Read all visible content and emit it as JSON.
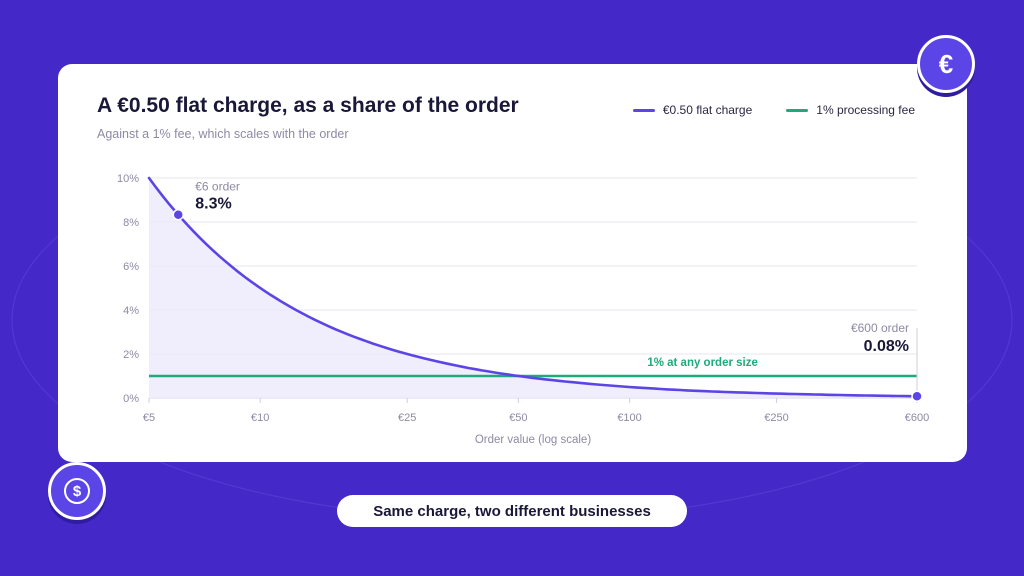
{
  "chart_data": {
    "type": "line",
    "title": "A €0.50 flat charge, as a share of the order",
    "subtitle": "Against a 1% fee, which scales with the order",
    "xlabel": "Order value (log scale)",
    "ylabel": "",
    "x_scale": "log",
    "xlim": [
      5,
      600
    ],
    "ylim": [
      0,
      10
    ],
    "x_ticks": [
      5,
      10,
      25,
      50,
      100,
      250,
      600
    ],
    "x_tick_labels": [
      "€5",
      "€10",
      "€25",
      "€50",
      "€100",
      "€250",
      "€600"
    ],
    "y_ticks": [
      0,
      2,
      4,
      6,
      8,
      10
    ],
    "y_tick_labels": [
      "0%",
      "2%",
      "4%",
      "6%",
      "8%",
      "10%"
    ],
    "grid": true,
    "legend_position": "top-right",
    "series": [
      {
        "name": "€0.50 flat charge",
        "color": "#5b45e6",
        "area_fill": "#ece9fb",
        "x": [
          5,
          6,
          7,
          8,
          10,
          12,
          15,
          20,
          25,
          30,
          40,
          50,
          75,
          100,
          150,
          200,
          250,
          300,
          400,
          500,
          600
        ],
        "values": [
          10,
          8.33,
          7.14,
          6.25,
          5,
          4.17,
          3.33,
          2.5,
          2,
          1.67,
          1.25,
          1,
          0.67,
          0.5,
          0.33,
          0.25,
          0.2,
          0.17,
          0.125,
          0.1,
          0.08
        ]
      },
      {
        "name": "1% processing fee",
        "color": "#1faa7a",
        "x": [
          5,
          600
        ],
        "values": [
          1,
          1
        ]
      }
    ],
    "annotations": [
      {
        "x": 6,
        "y": 8.33,
        "label": "€6 order",
        "value_text": "8.3%",
        "series": 0
      },
      {
        "x": 600,
        "y": 0.08,
        "label": "€600 order",
        "value_text": "0.08%",
        "series": 0
      },
      {
        "x": 150,
        "y": 1,
        "label": "1% at any order size",
        "color": "#1faa7a"
      }
    ]
  },
  "badges": {
    "top_icon": "euro-icon",
    "bottom_icon": "dollar-icon",
    "top_glyph": "€",
    "bottom_glyph": "$"
  },
  "caption": "Same charge, two different businesses"
}
